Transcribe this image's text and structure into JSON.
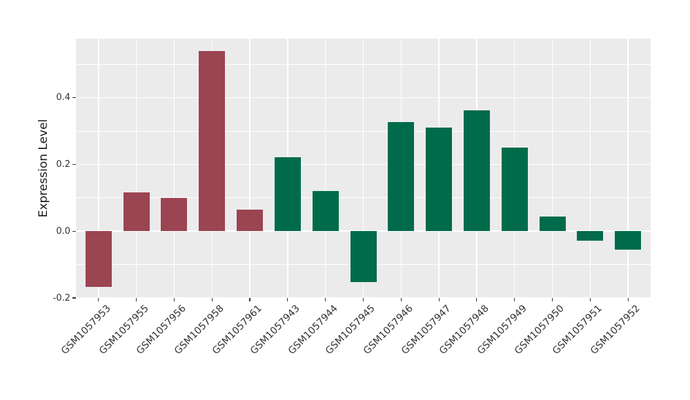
{
  "figure": {
    "background_color": "#FFFFFF",
    "panel_background_color": "#EBEBEB",
    "grid_color": "#FFFFFF",
    "tick_mark_color": "#333333",
    "axis_text_color": "#333333",
    "axis_title_color": "#1A1A1A"
  },
  "chart_data": {
    "type": "bar",
    "title": "",
    "xlabel": "",
    "ylabel": "Expression Level",
    "categories": [
      "GSM1057953",
      "GSM1057955",
      "GSM1057956",
      "GSM1057958",
      "GSM1057961",
      "GSM1057943",
      "GSM1057944",
      "GSM1057945",
      "GSM1057946",
      "GSM1057947",
      "GSM1057948",
      "GSM1057949",
      "GSM1057950",
      "GSM1057951",
      "GSM1057952"
    ],
    "values": [
      -0.167,
      0.116,
      0.099,
      0.539,
      0.065,
      0.222,
      0.12,
      -0.153,
      0.326,
      0.31,
      0.362,
      0.25,
      0.043,
      -0.028,
      -0.055
    ],
    "bar_colors": [
      "#9B4452",
      "#9B4452",
      "#9B4452",
      "#9B4452",
      "#9B4452",
      "#006B4A",
      "#006B4A",
      "#006B4A",
      "#006B4A",
      "#006B4A",
      "#006B4A",
      "#006B4A",
      "#006B4A",
      "#006B4A",
      "#006B4A"
    ],
    "color_groups": [
      {
        "color": "#9B4452",
        "categories": [
          "GSM1057953",
          "GSM1057955",
          "GSM1057956",
          "GSM1057958",
          "GSM1057961"
        ]
      },
      {
        "color": "#006B4A",
        "categories": [
          "GSM1057943",
          "GSM1057944",
          "GSM1057945",
          "GSM1057946",
          "GSM1057947",
          "GSM1057948",
          "GSM1057949",
          "GSM1057950",
          "GSM1057951",
          "GSM1057952"
        ]
      }
    ],
    "ylim": [
      -0.2,
      0.577
    ],
    "yticks": {
      "major": [
        -0.2,
        0.0,
        0.2,
        0.4
      ],
      "major_labels": [
        "-0.2",
        "0.0",
        "0.2",
        "0.4"
      ],
      "minor": [
        -0.1,
        0.1,
        0.3,
        0.5
      ]
    },
    "x_tick_rotation_deg": 45,
    "grid": "on",
    "legend": "none",
    "bar_relative_width": 0.7
  }
}
